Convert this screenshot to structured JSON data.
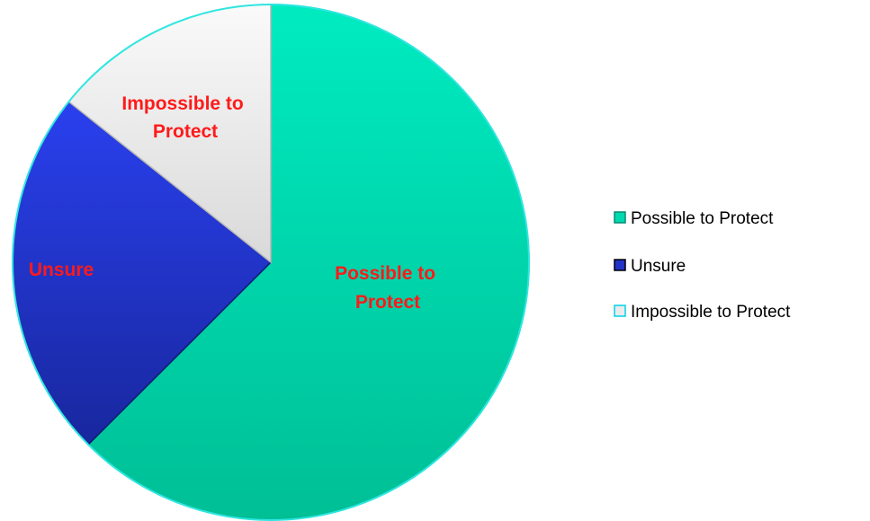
{
  "chart_data": {
    "type": "pie",
    "categories": [
      "Possible to Protect",
      "Unsure",
      "Impossible to Protect"
    ],
    "values": [
      62.5,
      23.2,
      14.3
    ],
    "slice_labels": [
      [
        "Possible to",
        "Protect"
      ],
      [
        "Unsure"
      ],
      [
        "Impossible to",
        "Protect"
      ]
    ],
    "colors": {
      "possible": "#00d9b0",
      "unsure": "#2233c8",
      "impossible": "#ebebeb",
      "slice_label": "#ff1a1a"
    },
    "legend": {
      "placement": "right",
      "entries": [
        "Possible to Protect",
        "Unsure",
        "Impossible to Protect"
      ]
    }
  }
}
